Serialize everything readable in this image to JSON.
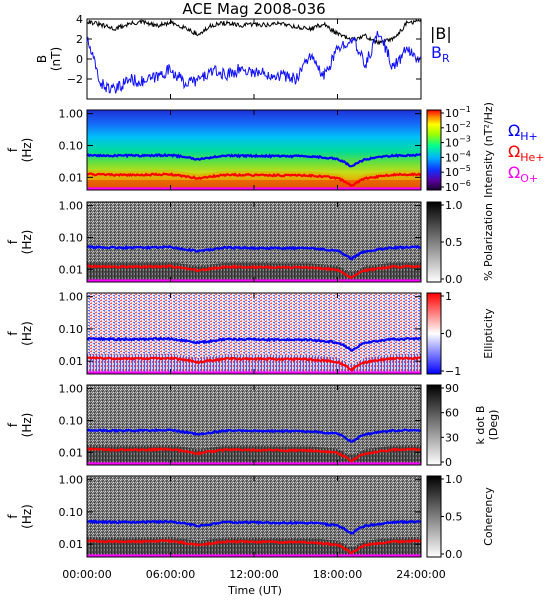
{
  "title": "ACE Mag 2008-036",
  "x_axis": {
    "label": "Time (UT)",
    "ticks": [
      "00:00:00",
      "06:00:00",
      "12:00:00",
      "18:00:00",
      "24:00:00"
    ]
  },
  "freq_ticks": [
    "1.00",
    "0.10",
    "0.01"
  ],
  "freq_ylabel": [
    "f",
    "(Hz)"
  ],
  "colors": {
    "total_field": "#000000",
    "radial_field": "#1010ff",
    "h_gyro": "#0000ff",
    "he_gyro": "#ff0000",
    "o_gyro": "#ff00ff"
  },
  "legend": {
    "h_plus": {
      "symbol": "Ω",
      "sub": "H+"
    },
    "he_plus": {
      "symbol": "Ω",
      "sub": "He+"
    },
    "o_plus": {
      "symbol": "Ω",
      "sub": "O+"
    }
  },
  "panels": [
    {
      "id": "b",
      "ylabel": [
        "B",
        "(nT)"
      ],
      "yticks": [
        "4",
        "2",
        "0",
        "−2"
      ],
      "legend_total": "|B|",
      "legend_radial": {
        "main": "B",
        "sub": "R"
      }
    },
    {
      "id": "intensity",
      "colorbar_label": "Intensity (nT²/Hz)",
      "colorbar_ticks": [
        {
          "base": "10",
          "exp": "−1"
        },
        {
          "base": "10",
          "exp": "−2"
        },
        {
          "base": "10",
          "exp": "−3"
        },
        {
          "base": "10",
          "exp": "−4"
        },
        {
          "base": "10",
          "exp": "−5"
        },
        {
          "base": "10",
          "exp": "−6"
        }
      ]
    },
    {
      "id": "polarization",
      "colorbar_label": "% Polarization",
      "colorbar_ticks": [
        "1.0",
        "0.5",
        "0.0"
      ]
    },
    {
      "id": "ellipticity",
      "colorbar_label": "Ellipticity",
      "colorbar_ticks": [
        "1",
        "0",
        "−1"
      ]
    },
    {
      "id": "kdotb",
      "colorbar_label": [
        "k dot B",
        "(Deg)"
      ],
      "colorbar_ticks": [
        "90",
        "60",
        "30",
        "0"
      ]
    },
    {
      "id": "coherency",
      "colorbar_label": "Coherency",
      "colorbar_ticks": [
        "1.0",
        "0.5",
        "0.0"
      ]
    }
  ],
  "chart_data": {
    "type": "line",
    "title": "ACE Mag 2008-036",
    "xlabel": "Time (UT)",
    "xlim": [
      "00:00:00",
      "24:00:00"
    ],
    "field_panel": {
      "ylabel": "B (nT)",
      "ylim": [
        -4,
        4
      ],
      "x_hours": [
        0,
        1,
        2,
        3,
        4,
        5,
        6,
        7,
        8,
        9,
        10,
        11,
        12,
        13,
        14,
        15,
        16,
        17,
        18,
        19,
        20,
        21,
        22,
        23,
        24
      ],
      "series": [
        {
          "name": "|B|",
          "color": "#000000",
          "values": [
            3.8,
            3.4,
            3.0,
            3.5,
            3.7,
            3.3,
            3.6,
            3.2,
            2.4,
            3.4,
            3.6,
            3.3,
            3.5,
            3.4,
            3.6,
            3.2,
            3.0,
            3.5,
            2.5,
            1.9,
            2.3,
            1.6,
            2.0,
            3.6,
            3.8
          ]
        },
        {
          "name": "B R",
          "color": "#1010ff",
          "values": [
            2.0,
            -2.5,
            -3.2,
            -2.0,
            -2.3,
            -1.8,
            -1.0,
            -2.4,
            -2.1,
            -1.2,
            -1.6,
            -1.0,
            -1.3,
            -1.5,
            -1.6,
            -2.0,
            0.4,
            -1.8,
            0.9,
            2.2,
            -0.6,
            2.8,
            -0.9,
            1.0,
            -0.2
          ]
        }
      ]
    },
    "frequency_panels": {
      "ylabel": "f (Hz)",
      "yscale": "log",
      "ylim": [
        0.004,
        1.3
      ],
      "x_hours": [
        0,
        2,
        4,
        6,
        8,
        10,
        12,
        14,
        16,
        18,
        19,
        20,
        22,
        24
      ],
      "series": [
        {
          "name": "H+",
          "color": "#0000ff",
          "values": [
            0.05,
            0.048,
            0.048,
            0.05,
            0.037,
            0.048,
            0.047,
            0.046,
            0.046,
            0.038,
            0.021,
            0.037,
            0.048,
            0.05
          ]
        },
        {
          "name": "He+",
          "color": "#ff0000",
          "values": [
            0.0125,
            0.012,
            0.012,
            0.0125,
            0.0093,
            0.012,
            0.0118,
            0.0115,
            0.0115,
            0.0095,
            0.0053,
            0.0093,
            0.012,
            0.0125
          ]
        },
        {
          "name": "O+",
          "color": "#ff00ff",
          "values": [
            0.0031,
            0.003,
            0.003,
            0.0031,
            0.0023,
            0.003,
            0.0029,
            0.0029,
            0.0029,
            0.0024,
            0.0013,
            0.0023,
            0.003,
            0.0031
          ]
        }
      ]
    }
  }
}
